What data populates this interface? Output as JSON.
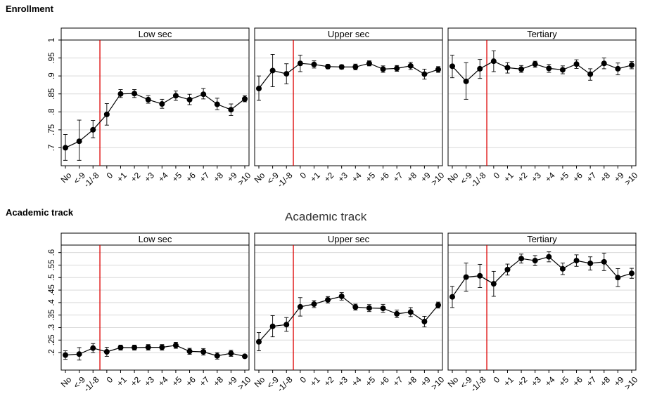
{
  "sections": [
    {
      "title": "Enrollment"
    },
    {
      "title": "Academic track"
    }
  ],
  "ghost_text": "Academic track",
  "colors": {
    "series": "#000000",
    "cutoff": "#dd0000",
    "grid": "#d9d9d9",
    "frame": "#000000",
    "ci": "#000000"
  },
  "chart_data": [
    {
      "type": "line",
      "title": "Low sec",
      "group": "Enrollment",
      "categories": [
        "No",
        "<-9",
        "-1/-8",
        "0",
        "+1",
        "+2",
        "+3",
        "+4",
        "+5",
        "+6",
        "+7",
        "+8",
        "+9",
        ">10"
      ],
      "ylim": [
        0.65,
        1.0
      ],
      "yticks": [
        0.7,
        0.75,
        0.8,
        0.85,
        0.9,
        0.95,
        1.0
      ],
      "ytick_labels": [
        ".7",
        ".75",
        ".8",
        ".85",
        ".9",
        ".95",
        "1"
      ],
      "show_yaxis": true,
      "cutoff_after": 2,
      "values": [
        0.7,
        0.718,
        0.75,
        0.793,
        0.85,
        0.851,
        0.834,
        0.822,
        0.845,
        0.834,
        0.849,
        0.821,
        0.806,
        0.836
      ],
      "ci_low": [
        0.665,
        0.665,
        0.728,
        0.763,
        0.84,
        0.84,
        0.824,
        0.81,
        0.832,
        0.82,
        0.836,
        0.806,
        0.79,
        0.828
      ],
      "ci_high": [
        0.737,
        0.777,
        0.776,
        0.823,
        0.862,
        0.862,
        0.845,
        0.835,
        0.858,
        0.849,
        0.865,
        0.838,
        0.822,
        0.845
      ]
    },
    {
      "type": "line",
      "title": "Upper sec",
      "group": "Enrollment",
      "categories": [
        "No",
        "<-9",
        "-1/-8",
        "0",
        "+1",
        "+2",
        "+3",
        "+4",
        "+5",
        "+6",
        "+7",
        "+8",
        "+9",
        ">10"
      ],
      "ylim": [
        0.65,
        1.0
      ],
      "yticks": [
        0.7,
        0.75,
        0.8,
        0.85,
        0.9,
        0.95,
        1.0
      ],
      "show_yaxis": false,
      "cutoff_after": 2,
      "values": [
        0.865,
        0.915,
        0.906,
        0.935,
        0.932,
        0.926,
        0.925,
        0.925,
        0.935,
        0.919,
        0.921,
        0.928,
        0.905,
        0.918
      ],
      "ci_low": [
        0.832,
        0.87,
        0.878,
        0.912,
        0.922,
        0.92,
        0.919,
        0.917,
        0.928,
        0.91,
        0.913,
        0.918,
        0.891,
        0.91
      ],
      "ci_high": [
        0.9,
        0.96,
        0.934,
        0.958,
        0.942,
        0.932,
        0.931,
        0.933,
        0.942,
        0.928,
        0.929,
        0.938,
        0.919,
        0.926
      ]
    },
    {
      "type": "line",
      "title": "Tertiary",
      "group": "Enrollment",
      "categories": [
        "No",
        "<-9",
        "-1/-8",
        "0",
        "+1",
        "+2",
        "+3",
        "+4",
        "+5",
        "+6",
        "+7",
        "+8",
        "+9",
        ">10"
      ],
      "ylim": [
        0.65,
        1.0
      ],
      "yticks": [
        0.7,
        0.75,
        0.8,
        0.85,
        0.9,
        0.95,
        1.0
      ],
      "show_yaxis": false,
      "cutoff_after": 2,
      "values": [
        0.927,
        0.885,
        0.92,
        0.941,
        0.923,
        0.919,
        0.933,
        0.921,
        0.917,
        0.933,
        0.905,
        0.935,
        0.92,
        0.93
      ],
      "ci_low": [
        0.895,
        0.835,
        0.893,
        0.912,
        0.908,
        0.91,
        0.924,
        0.91,
        0.906,
        0.921,
        0.888,
        0.92,
        0.903,
        0.92
      ],
      "ci_high": [
        0.958,
        0.937,
        0.946,
        0.97,
        0.937,
        0.929,
        0.941,
        0.932,
        0.928,
        0.945,
        0.92,
        0.95,
        0.936,
        0.94
      ]
    },
    {
      "type": "line",
      "title": "Low sec",
      "group": "Academic track",
      "categories": [
        "No",
        "<-9",
        "-1/-8",
        "0",
        "+1",
        "+2",
        "+3",
        "+4",
        "+5",
        "+6",
        "+7",
        "+8",
        "+9",
        ">10"
      ],
      "ylim": [
        0.13,
        0.63
      ],
      "yticks": [
        0.2,
        0.25,
        0.3,
        0.35,
        0.4,
        0.45,
        0.5,
        0.55,
        0.6
      ],
      "ytick_labels": [
        ".2",
        ".25",
        ".3",
        ".35",
        ".4",
        ".45",
        ".5",
        ".55",
        ".6"
      ],
      "show_yaxis": true,
      "cutoff_after": 2,
      "values": [
        0.19,
        0.194,
        0.218,
        0.203,
        0.22,
        0.22,
        0.221,
        0.221,
        0.229,
        0.205,
        0.203,
        0.187,
        0.197,
        0.185
      ],
      "ci_low": [
        0.173,
        0.17,
        0.2,
        0.185,
        0.21,
        0.21,
        0.21,
        0.21,
        0.217,
        0.193,
        0.19,
        0.174,
        0.185,
        0.18
      ],
      "ci_high": [
        0.207,
        0.22,
        0.236,
        0.221,
        0.23,
        0.23,
        0.232,
        0.232,
        0.241,
        0.217,
        0.216,
        0.2,
        0.209,
        0.19
      ]
    },
    {
      "type": "line",
      "title": "Upper sec",
      "group": "Academic track",
      "categories": [
        "No",
        "<-9",
        "-1/-8",
        "0",
        "+1",
        "+2",
        "+3",
        "+4",
        "+5",
        "+6",
        "+7",
        "+8",
        "+9",
        ">10"
      ],
      "ylim": [
        0.13,
        0.63
      ],
      "yticks": [
        0.2,
        0.25,
        0.3,
        0.35,
        0.4,
        0.45,
        0.5,
        0.55,
        0.6
      ],
      "show_yaxis": false,
      "cutoff_after": 2,
      "values": [
        0.243,
        0.305,
        0.312,
        0.383,
        0.394,
        0.411,
        0.425,
        0.382,
        0.378,
        0.377,
        0.355,
        0.362,
        0.324,
        0.39
      ],
      "ci_low": [
        0.207,
        0.263,
        0.285,
        0.346,
        0.38,
        0.398,
        0.41,
        0.37,
        0.364,
        0.361,
        0.34,
        0.344,
        0.303,
        0.378
      ],
      "ci_high": [
        0.28,
        0.348,
        0.34,
        0.42,
        0.408,
        0.424,
        0.44,
        0.394,
        0.392,
        0.393,
        0.37,
        0.38,
        0.345,
        0.402
      ]
    },
    {
      "type": "line",
      "title": "Tertiary",
      "group": "Academic track",
      "categories": [
        "No",
        "<-9",
        "-1/-8",
        "0",
        "+1",
        "+2",
        "+3",
        "+4",
        "+5",
        "+6",
        "+7",
        "+8",
        "+9",
        ">10"
      ],
      "ylim": [
        0.13,
        0.63
      ],
      "yticks": [
        0.2,
        0.25,
        0.3,
        0.35,
        0.4,
        0.45,
        0.5,
        0.55,
        0.6
      ],
      "show_yaxis": false,
      "cutoff_after": 2,
      "values": [
        0.423,
        0.502,
        0.507,
        0.475,
        0.532,
        0.576,
        0.568,
        0.583,
        0.535,
        0.568,
        0.557,
        0.563,
        0.5,
        0.517
      ],
      "ci_low": [
        0.38,
        0.445,
        0.46,
        0.425,
        0.51,
        0.558,
        0.548,
        0.563,
        0.512,
        0.545,
        0.53,
        0.528,
        0.464,
        0.497
      ],
      "ci_high": [
        0.465,
        0.558,
        0.553,
        0.525,
        0.554,
        0.594,
        0.588,
        0.603,
        0.558,
        0.591,
        0.583,
        0.598,
        0.536,
        0.537
      ]
    }
  ]
}
